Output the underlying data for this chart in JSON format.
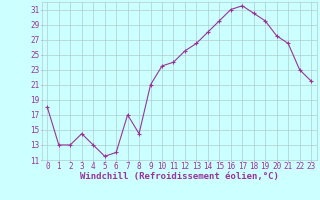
{
  "x": [
    0,
    1,
    2,
    3,
    4,
    5,
    6,
    7,
    8,
    9,
    10,
    11,
    12,
    13,
    14,
    15,
    16,
    17,
    18,
    19,
    20,
    21,
    22,
    23
  ],
  "y": [
    18,
    13,
    13,
    14.5,
    13,
    11.5,
    12,
    17,
    14.5,
    21,
    23.5,
    24,
    25.5,
    26.5,
    28,
    29.5,
    31,
    31.5,
    30.5,
    29.5,
    27.5,
    26.5,
    23,
    21.5
  ],
  "line_color": "#993399",
  "marker": "+",
  "bg_color": "#ccffff",
  "grid_color": "#b0cccc",
  "xlabel": "Windchill (Refroidissement éolien,°C)",
  "xlabel_fontsize": 6.5,
  "tick_fontsize": 5.5,
  "ylim": [
    11,
    32
  ],
  "yticks": [
    11,
    13,
    15,
    17,
    19,
    21,
    23,
    25,
    27,
    29,
    31
  ],
  "xlim": [
    -0.5,
    23.5
  ],
  "xticks": [
    0,
    1,
    2,
    3,
    4,
    5,
    6,
    7,
    8,
    9,
    10,
    11,
    12,
    13,
    14,
    15,
    16,
    17,
    18,
    19,
    20,
    21,
    22,
    23
  ]
}
